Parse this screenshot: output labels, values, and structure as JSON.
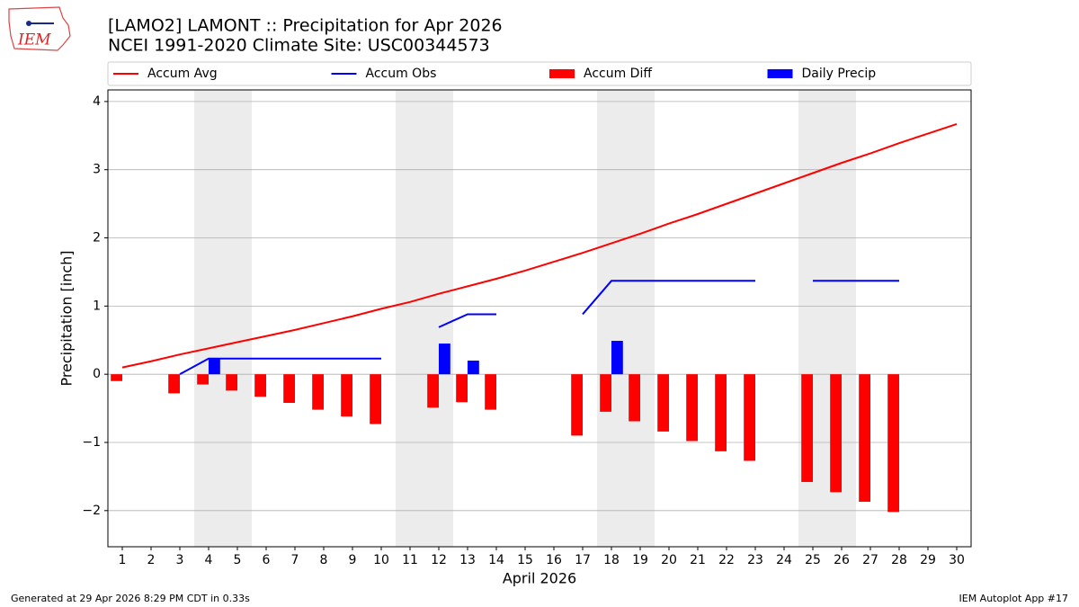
{
  "logo": "IEM",
  "footer": {
    "left": "Generated at 29 Apr 2026 8:29 PM CDT in 0.33s",
    "right": "IEM Autoplot App #17"
  },
  "chart_data": {
    "type": "combo",
    "title": "[LAMO2] LAMONT :: Precipitation for Apr 2026",
    "subtitle": "NCEI 1991-2020 Climate Site: USC00344573",
    "x_label": "April 2026",
    "y_label": "Precipitation [inch]",
    "x": [
      1,
      2,
      3,
      4,
      5,
      6,
      7,
      8,
      9,
      10,
      11,
      12,
      13,
      14,
      15,
      16,
      17,
      18,
      19,
      20,
      21,
      22,
      23,
      24,
      25,
      26,
      27,
      28,
      29,
      30
    ],
    "xlim": [
      0.5,
      30.5
    ],
    "xticks": [
      1,
      2,
      3,
      4,
      5,
      6,
      7,
      8,
      9,
      10,
      11,
      12,
      13,
      14,
      15,
      16,
      17,
      18,
      19,
      20,
      21,
      22,
      23,
      24,
      25,
      26,
      27,
      28,
      29,
      30
    ],
    "ylim": [
      -2.53,
      4.17
    ],
    "yticks": [
      {
        "value": -2,
        "label": "−2"
      },
      {
        "value": -1,
        "label": "−1"
      },
      0,
      1,
      2,
      3,
      4
    ],
    "grid": true,
    "weekend_start_days": [
      4,
      11,
      18,
      25
    ],
    "series": [
      {
        "name": "Accum Avg",
        "kind": "line",
        "color": "#ff0000",
        "values": [
          0.1,
          0.19,
          0.29,
          0.38,
          0.47,
          0.56,
          0.65,
          0.75,
          0.85,
          0.96,
          1.06,
          1.18,
          1.29,
          1.4,
          1.52,
          1.65,
          1.78,
          1.92,
          2.06,
          2.21,
          2.35,
          2.5,
          2.65,
          2.8,
          2.95,
          3.1,
          3.24,
          3.39,
          3.53,
          3.67
        ]
      },
      {
        "name": "Accum Obs",
        "kind": "line",
        "color": "#0000ff",
        "values": [
          null,
          null,
          0,
          0.23,
          0.23,
          0.23,
          0.23,
          0.23,
          0.23,
          0.23,
          null,
          0.69,
          0.88,
          0.88,
          null,
          null,
          0.88,
          1.37,
          1.37,
          1.37,
          1.37,
          1.37,
          1.37,
          null,
          1.37,
          1.37,
          1.37,
          1.37,
          null,
          null
        ]
      },
      {
        "name": "Accum Diff",
        "kind": "bar",
        "color": "#ff0000",
        "values": [
          -0.1,
          null,
          -0.28,
          -0.15,
          -0.24,
          -0.33,
          -0.42,
          -0.52,
          -0.62,
          -0.73,
          null,
          -0.49,
          -0.41,
          -0.52,
          null,
          null,
          -0.9,
          -0.55,
          -0.69,
          -0.84,
          -0.98,
          -1.13,
          -1.27,
          null,
          -1.58,
          -1.73,
          -1.87,
          -2.02,
          null,
          null
        ]
      },
      {
        "name": "Daily Precip",
        "kind": "bar",
        "color": "#0000ff",
        "values": [
          null,
          null,
          0,
          0.23,
          0,
          0,
          0,
          0,
          0,
          0,
          null,
          0.45,
          0.2,
          0,
          null,
          null,
          0,
          0.49,
          0,
          0,
          0,
          0,
          0,
          null,
          0,
          0,
          0,
          0,
          null,
          null
        ]
      }
    ]
  }
}
